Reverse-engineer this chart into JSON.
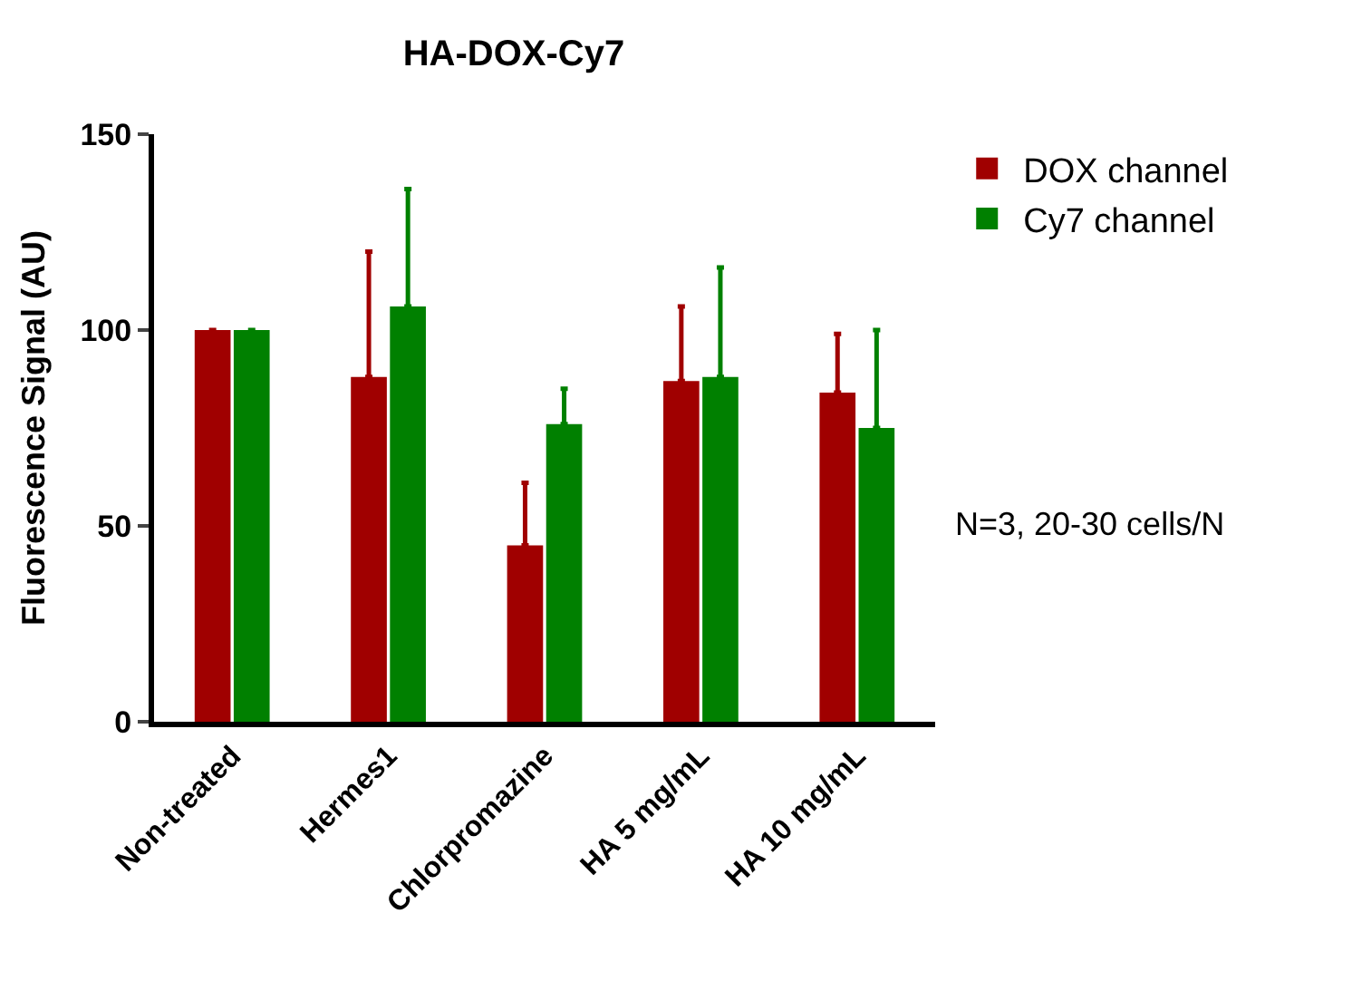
{
  "chart_data": {
    "type": "bar",
    "title": "HA-DOX-Cy7",
    "ylabel": "Fluorescence Signal (AU)",
    "categories": [
      "Non-treated",
      "Hermes1",
      "Chlorpromazine",
      "HA 5 mg/mL",
      "HA 10 mg/mL"
    ],
    "series": [
      {
        "name": "DOX channel",
        "color": "#a00000",
        "values": [
          100,
          88,
          45,
          87,
          84
        ],
        "errors": [
          null,
          [
            88,
            120
          ],
          [
            45,
            61
          ],
          [
            87,
            106
          ],
          [
            84,
            99
          ]
        ]
      },
      {
        "name": "Cy7 channel",
        "color": "#008000",
        "values": [
          100,
          106,
          76,
          88,
          75
        ],
        "errors": [
          null,
          [
            106,
            136
          ],
          [
            76,
            85
          ],
          [
            88,
            116
          ],
          [
            75,
            100
          ]
        ]
      }
    ],
    "ylim": [
      0,
      150
    ],
    "yticks": [
      0,
      50,
      100,
      150
    ],
    "legend": "top right",
    "annotations": [
      "N=3, 20-30 cells/N"
    ]
  }
}
